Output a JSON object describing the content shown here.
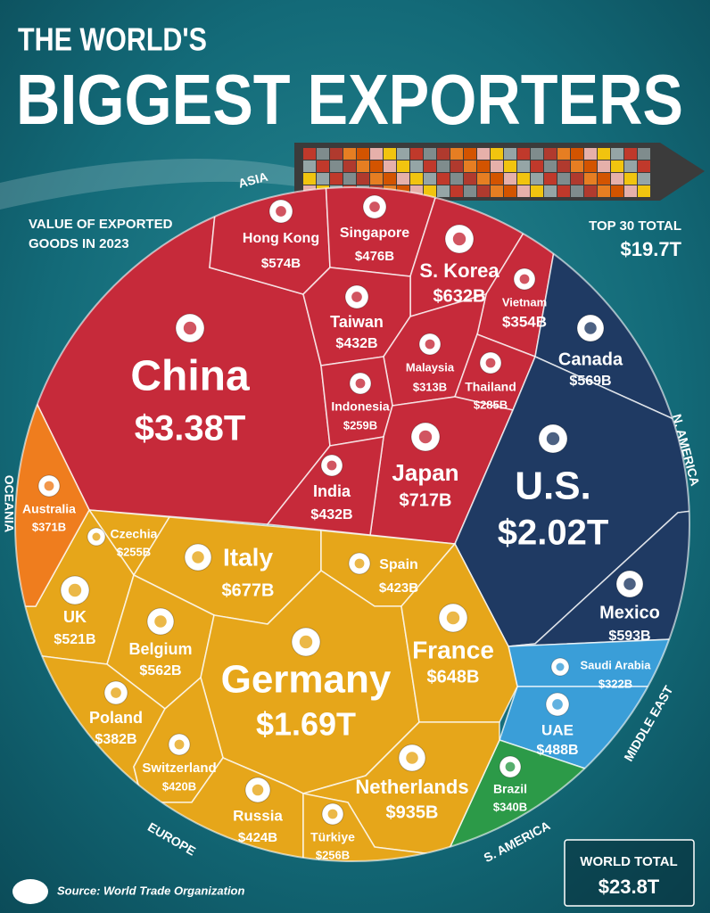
{
  "chart_data": {
    "type": "voronoi-treemap",
    "title": [
      "THE WORLD'S",
      "BIGGEST EXPORTERS"
    ],
    "subtitle": [
      "VALUE OF EXPORTED",
      "GOODS IN 2023"
    ],
    "top_total": {
      "label": "TOP 30 TOTAL",
      "value": "$19.7T"
    },
    "world_total": {
      "label": "WORLD TOTAL",
      "value": "$23.8T"
    },
    "source": "Source: World Trade Organization",
    "series": [
      {
        "name": "ASIA",
        "color": "#c62a3a",
        "categories": [
          "China",
          "Hong Kong",
          "Singapore",
          "S. Korea",
          "Vietnam",
          "Taiwan",
          "Malaysia",
          "Thailand",
          "Indonesia",
          "Japan",
          "India"
        ],
        "values": [
          3380,
          574,
          476,
          632,
          354,
          432,
          313,
          285,
          259,
          717,
          432
        ],
        "value_labels": [
          "$3.38T",
          "$574B",
          "$476B",
          "$632B",
          "$354B",
          "$432B",
          "$313B",
          "$285B",
          "$259B",
          "$717B",
          "$432B"
        ]
      },
      {
        "name": "N. AMERICA",
        "color": "#1f3a63",
        "categories": [
          "Canada",
          "U.S.",
          "Mexico"
        ],
        "values": [
          569,
          2020,
          593
        ],
        "value_labels": [
          "$569B",
          "$2.02T",
          "$593B"
        ]
      },
      {
        "name": "MIDDLE EAST",
        "color": "#3a9ed8",
        "categories": [
          "Saudi Arabia",
          "UAE"
        ],
        "values": [
          322,
          488
        ],
        "value_labels": [
          "$322B",
          "$488B"
        ]
      },
      {
        "name": "S. AMERICA",
        "color": "#2c9a48",
        "categories": [
          "Brazil"
        ],
        "values": [
          340
        ],
        "value_labels": [
          "$340B"
        ]
      },
      {
        "name": "EUROPE",
        "color": "#e6a61a",
        "categories": [
          "Czechia",
          "Italy",
          "Spain",
          "UK",
          "Belgium",
          "Germany",
          "France",
          "Poland",
          "Switzerland",
          "Netherlands",
          "Russia",
          "Türkiye"
        ],
        "values": [
          255,
          677,
          423,
          521,
          562,
          1690,
          648,
          382,
          420,
          935,
          424,
          256
        ],
        "value_labels": [
          "$255B",
          "$677B",
          "$423B",
          "$521B",
          "$562B",
          "$1.69T",
          "$648B",
          "$382B",
          "$420B",
          "$935B",
          "$424B",
          "$256B"
        ]
      },
      {
        "name": "OCEANIA",
        "color": "#ef7d1e",
        "categories": [
          "Australia"
        ],
        "values": [
          371
        ],
        "value_labels": [
          "$371B"
        ]
      }
    ]
  }
}
